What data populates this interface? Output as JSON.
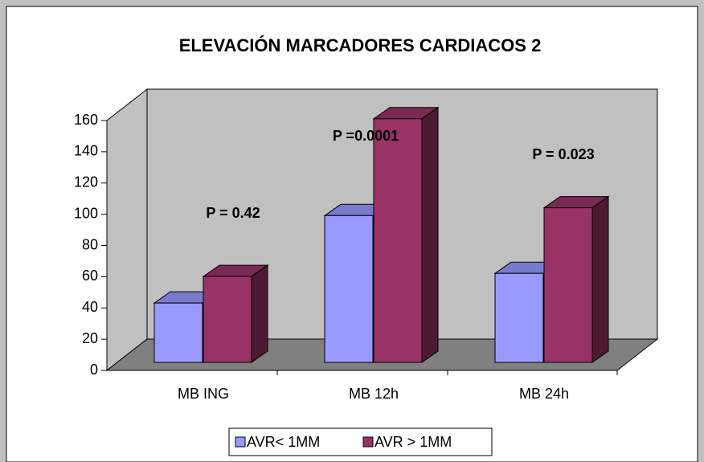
{
  "chart_data": {
    "type": "bar3d",
    "title": "ELEVACIÓN MARCADORES CARDIACOS 2",
    "categories": [
      "MB ING",
      "MB 12h",
      "MB 24h"
    ],
    "series": [
      {
        "name": "AVR< 1MM",
        "color": "#9999ff",
        "values": [
          38,
          94,
          57
        ]
      },
      {
        "name": "AVR > 1MM",
        "color": "#993366",
        "values": [
          55,
          156,
          99
        ]
      }
    ],
    "annotations": [
      "P = 0.42",
      "P =0.0001",
      "P =  0.023"
    ],
    "ylim": [
      0,
      160
    ],
    "yticks": [
      0,
      20,
      40,
      60,
      80,
      100,
      120,
      140,
      160
    ],
    "legend": "bottom"
  }
}
